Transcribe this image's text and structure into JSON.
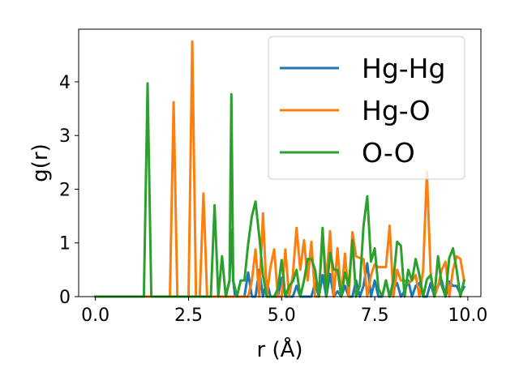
{
  "chart_data": {
    "type": "line",
    "xlabel": "r (Å)",
    "ylabel": "g(r)",
    "xlim": [
      -0.45,
      10.35
    ],
    "ylim": [
      0,
      4.98
    ],
    "xticks": [
      0.0,
      2.5,
      5.0,
      7.5,
      10.0
    ],
    "xtick_labels": [
      "0.0",
      "2.5",
      "5.0",
      "7.5",
      "10.0"
    ],
    "yticks": [
      0,
      1,
      2,
      3,
      4
    ],
    "ytick_labels": [
      "0",
      "1",
      "2",
      "3",
      "4"
    ],
    "grid": false,
    "legend_position": "top-right",
    "series": [
      {
        "name": "Hg-Hg",
        "color": "#1f77b4",
        "x": [
          0.0,
          3.5,
          3.6,
          3.65,
          3.7,
          3.75,
          3.8,
          4.0,
          4.1,
          4.2,
          4.3,
          4.4,
          4.5,
          4.6,
          4.7,
          4.8,
          4.9,
          5.0,
          5.1,
          5.2,
          5.3,
          5.4,
          5.5,
          5.6,
          5.7,
          5.8,
          5.9,
          6.0,
          6.1,
          6.2,
          6.3,
          6.4,
          6.5,
          6.6,
          6.7,
          6.8,
          6.9,
          7.0,
          7.1,
          7.2,
          7.3,
          7.4,
          7.5,
          7.6,
          7.7,
          7.8,
          7.9,
          8.0,
          8.1,
          8.2,
          8.3,
          8.4,
          8.5,
          8.6,
          8.7,
          8.8,
          8.9,
          9.0,
          9.1,
          9.2,
          9.3,
          9.4,
          9.5,
          9.6,
          9.7,
          9.8,
          9.9
        ],
        "y": [
          0,
          0,
          0.3,
          1.25,
          0.3,
          0,
          0,
          0,
          0.45,
          0,
          0,
          0.5,
          0,
          0.3,
          0,
          0,
          0,
          0.35,
          0,
          0,
          0,
          0.2,
          0,
          0,
          0,
          0,
          0.25,
          0,
          0.4,
          0,
          0.42,
          0,
          0.1,
          0,
          0.2,
          0,
          0,
          0.3,
          0,
          0.2,
          0.62,
          0,
          0.3,
          0,
          0,
          0.3,
          0,
          0.15,
          0.25,
          0,
          0.1,
          0.3,
          0,
          0.2,
          0.25,
          0,
          0,
          0.25,
          0,
          0.2,
          0.3,
          0,
          0.28,
          0.2,
          0.2,
          0.05,
          0.18
        ]
      },
      {
        "name": "Hg-O",
        "color": "#ff7f0e",
        "x": [
          0.0,
          2.0,
          2.1,
          2.2,
          2.5,
          2.6,
          2.7,
          2.8,
          2.9,
          3.0,
          3.8,
          3.9,
          4.0,
          4.1,
          4.2,
          4.3,
          4.4,
          4.5,
          4.6,
          4.7,
          4.8,
          4.9,
          5.0,
          5.1,
          5.2,
          5.3,
          5.4,
          5.5,
          5.6,
          5.7,
          5.8,
          5.9,
          6.0,
          6.1,
          6.2,
          6.3,
          6.4,
          6.5,
          6.6,
          6.7,
          6.8,
          6.9,
          7.0,
          7.1,
          7.2,
          7.3,
          7.4,
          7.5,
          7.6,
          7.7,
          7.8,
          7.9,
          8.0,
          8.1,
          8.2,
          8.3,
          8.4,
          8.5,
          8.6,
          8.7,
          8.8,
          8.9,
          9.0,
          9.1,
          9.2,
          9.3,
          9.4,
          9.5,
          9.6,
          9.7,
          9.8,
          9.9
        ],
        "y": [
          0,
          0,
          3.62,
          0,
          0,
          4.75,
          0,
          0,
          1.92,
          0,
          0,
          0,
          0,
          0,
          0.3,
          0.88,
          0,
          1.55,
          0,
          0.55,
          0.88,
          0,
          0,
          0.88,
          0,
          0.4,
          1.28,
          0.5,
          1.05,
          0.3,
          1.02,
          0,
          0,
          1.15,
          0.3,
          1.22,
          0,
          0.9,
          0,
          0.8,
          0,
          1.2,
          0.75,
          0.72,
          0.7,
          0,
          0.4,
          0.6,
          0.55,
          0.55,
          0.55,
          1.32,
          0,
          0.5,
          0.3,
          0.3,
          0.25,
          0.3,
          0.4,
          0,
          0.5,
          2.32,
          0.45,
          0,
          0.2,
          0.5,
          0.65,
          0,
          0.5,
          0.75,
          0.7,
          0.3
        ]
      },
      {
        "name": "O-O",
        "color": "#2ca02c",
        "x": [
          0.0,
          1.3,
          1.4,
          1.5,
          3.0,
          3.1,
          3.2,
          3.3,
          3.4,
          3.5,
          3.6,
          3.65,
          3.7,
          3.8,
          3.9,
          4.0,
          4.1,
          4.2,
          4.3,
          4.4,
          4.5,
          4.6,
          4.7,
          4.8,
          4.9,
          5.0,
          5.1,
          5.2,
          5.3,
          5.4,
          5.5,
          5.6,
          5.7,
          5.8,
          5.9,
          6.0,
          6.1,
          6.2,
          6.3,
          6.4,
          6.5,
          6.6,
          6.7,
          6.8,
          6.9,
          7.0,
          7.1,
          7.2,
          7.3,
          7.4,
          7.5,
          7.6,
          7.7,
          7.8,
          7.9,
          8.0,
          8.1,
          8.2,
          8.3,
          8.4,
          8.5,
          8.6,
          8.7,
          8.8,
          8.9,
          9.0,
          9.1,
          9.2,
          9.3,
          9.4,
          9.5,
          9.6,
          9.7,
          9.8,
          9.9
        ],
        "y": [
          0,
          0,
          3.97,
          0,
          0,
          0,
          1.7,
          0,
          0.75,
          0,
          0.3,
          3.77,
          0.3,
          0,
          0.3,
          0.3,
          0.98,
          1.5,
          1.77,
          1.12,
          0.4,
          0,
          0,
          0,
          0.15,
          0.68,
          0,
          0.2,
          0.28,
          0.5,
          0,
          0.3,
          0.7,
          0.7,
          0.5,
          0,
          1.28,
          0,
          0.82,
          0.5,
          0.5,
          0,
          0.45,
          0.2,
          1.05,
          0,
          0.2,
          1.32,
          1.87,
          0.65,
          0.9,
          0.15,
          0,
          0.3,
          0,
          0.3,
          1.02,
          0.95,
          0,
          0.5,
          0.3,
          0.7,
          0.4,
          0,
          0.32,
          0.4,
          0,
          0.75,
          0.2,
          0,
          0.72,
          0.9,
          0.5,
          0,
          0.3
        ]
      }
    ]
  }
}
